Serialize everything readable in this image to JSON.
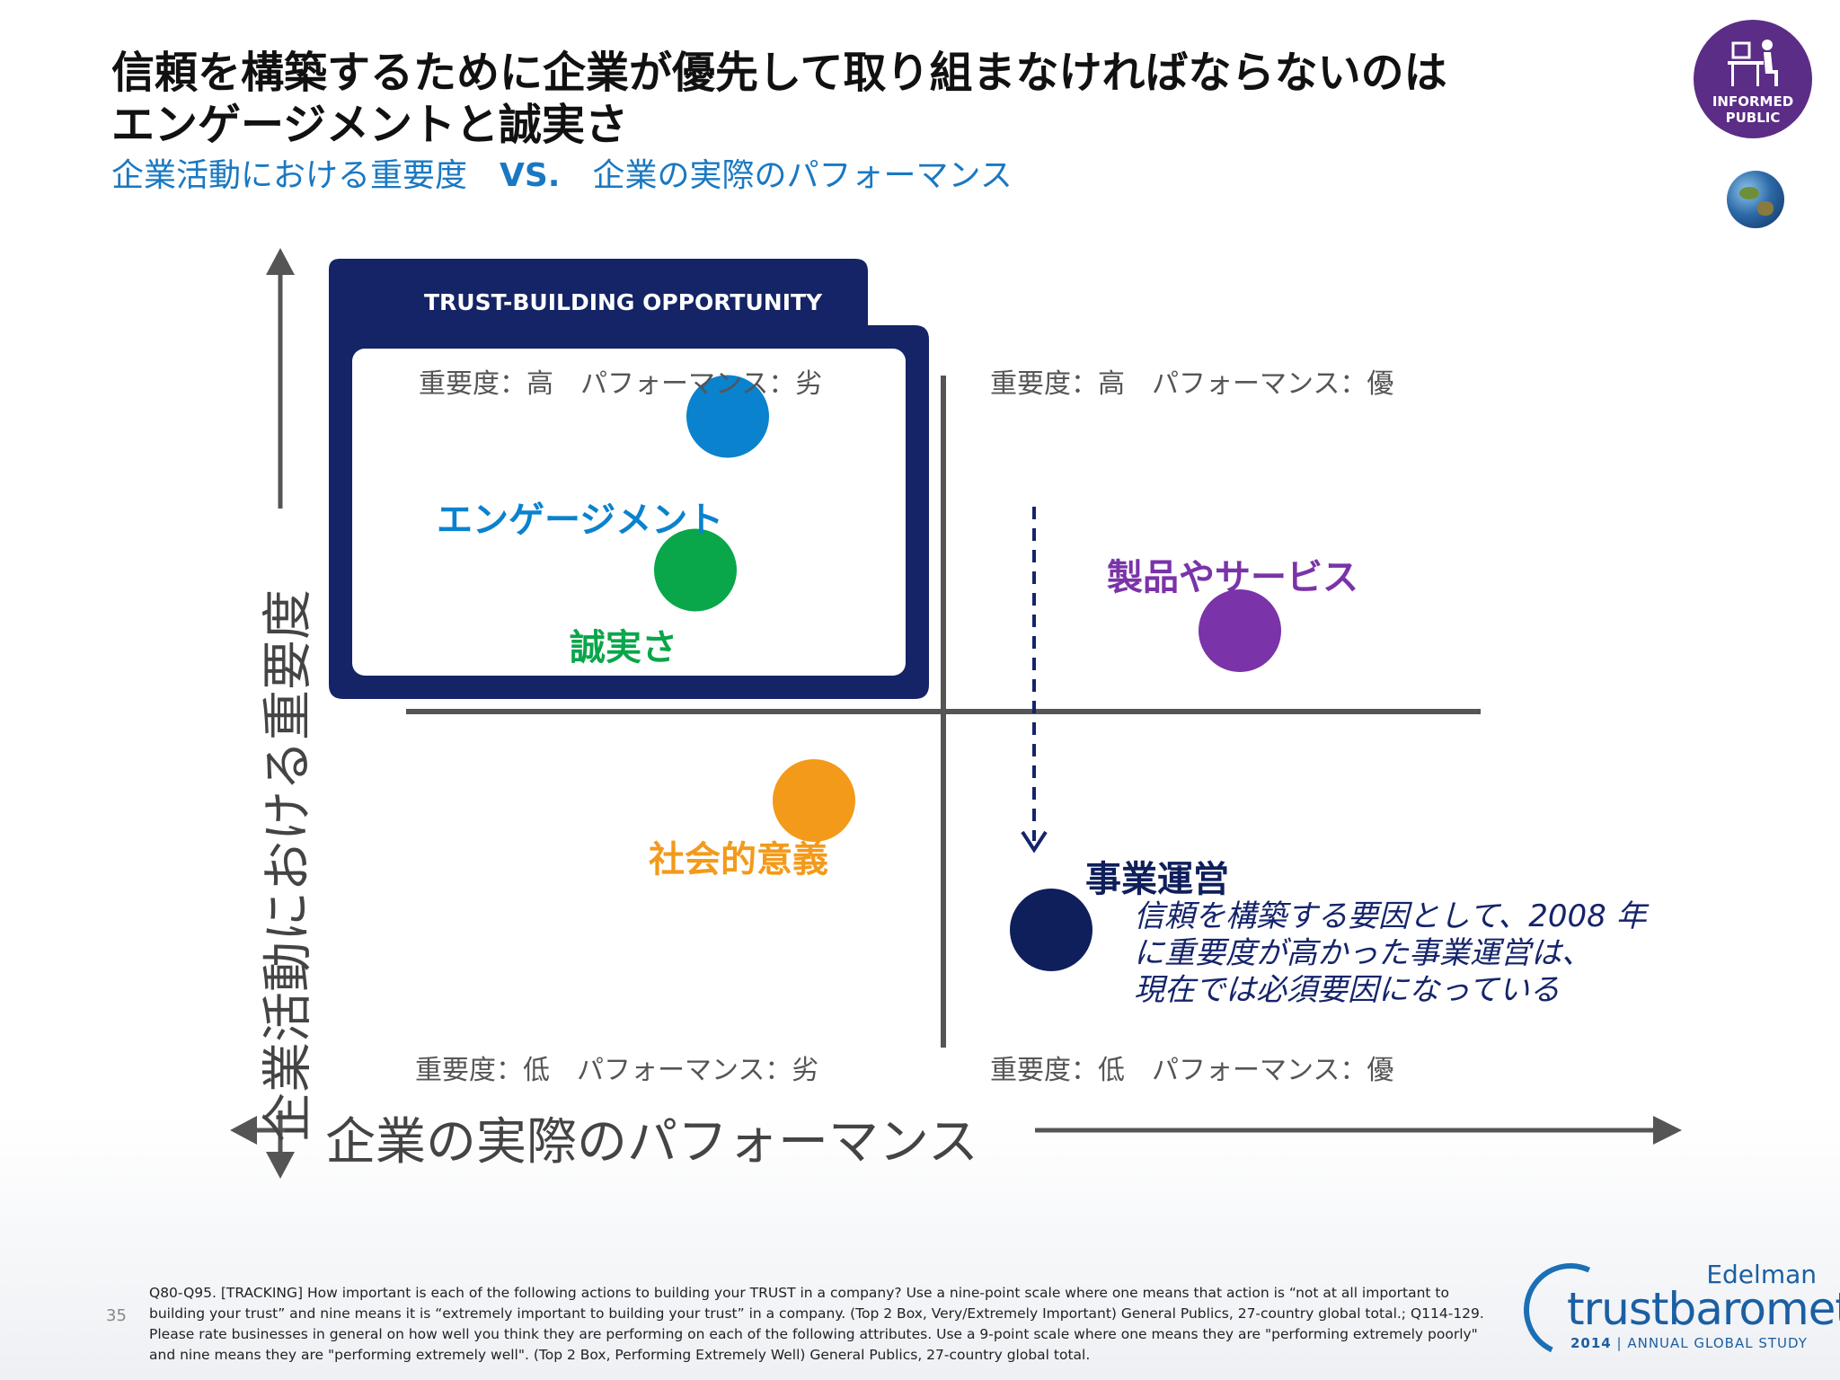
{
  "title": {
    "line1": "信頼を構築するために企業が優先して取り組まなければならないのは",
    "line2": "エンゲージメントと誠実さ"
  },
  "subtitle": {
    "left": "企業活動における重要度",
    "vs": "VS.",
    "right": "企業の実際のパフォーマンス"
  },
  "badge": {
    "line1": "INFORMED",
    "line2": "PUBLIC",
    "icon": "desk-person-icon"
  },
  "globe_icon": "globe-icon",
  "chart_data": {
    "type": "scatter",
    "xlabel": "企業の実際のパフォーマンス",
    "ylabel": "企業活動における重要度",
    "quadrants": {
      "top_left": "重要度：高　パフォーマンス：劣",
      "top_right": "重要度：高　パフォーマンス：優",
      "bottom_left": "重要度：低　パフォーマンス：劣",
      "bottom_right": "重要度：低　パフォーマンス：優"
    },
    "opportunity_label": "TRUST-BUILDING OPPORTUNITY",
    "points": [
      {
        "name": "エンゲージメント",
        "x": -0.4,
        "y": 0.73,
        "color": "#0a82ce"
      },
      {
        "name": "誠実さ",
        "x": -0.46,
        "y": 0.35,
        "color": "#0aa64a"
      },
      {
        "name": "製品やサービス",
        "x": 0.55,
        "y": 0.2,
        "color": "#7a33a8"
      },
      {
        "name": "社会的意義",
        "x": -0.24,
        "y": -0.22,
        "color": "#f39a1b"
      },
      {
        "name": "事業運営",
        "x": 0.2,
        "y": -0.54,
        "color": "#0f1f5c"
      }
    ],
    "arrow_to": "事業運営",
    "xlim": [
      -1,
      1
    ],
    "ylim": [
      -1,
      1
    ]
  },
  "note": {
    "line1": "信頼を構築する要因として、2008 年",
    "line2": "に重要度が高かった事業運営は、",
    "line3": "現在では必須要因になっている"
  },
  "page_number": "35",
  "footnote": "Q80-Q95. [TRACKING] How important is each of the following actions to building your TRUST in a company? Use a nine-point scale where one means that action is “not at all important to building your trust” and nine means it is “extremely important to building your trust” in a company. (Top 2 Box, Very/Extremely Important) General Publics, 27-country global total.; Q114-129. Please rate businesses in general on how well you think they are performing on each of the following attributes. Use a 9-point scale where one means they are \"performing extremely poorly\" and nine means they are \"performing extremely well\". (Top 2 Box, Performing Extremely Well) General Publics, 27-country global total.",
  "logo": {
    "edelman": "Edelman",
    "trust": "trust",
    "barometer": "barometer",
    "year": "2014",
    "study": "| ANNUAL GLOBAL STUDY"
  }
}
